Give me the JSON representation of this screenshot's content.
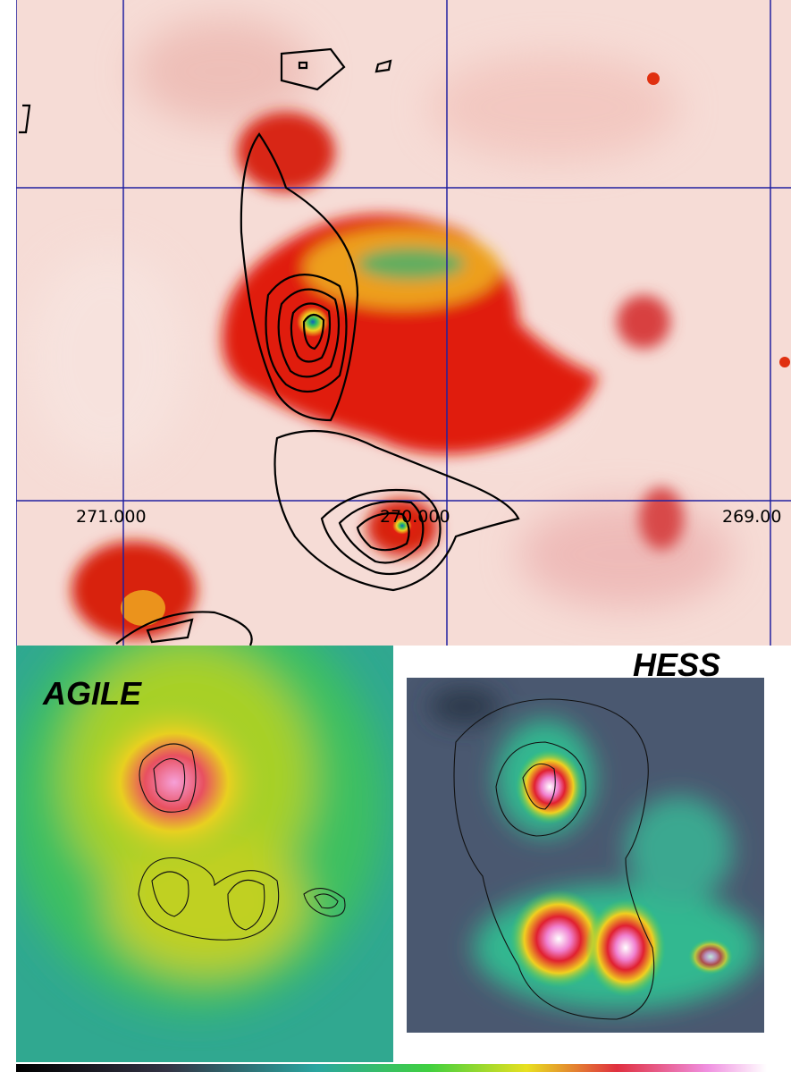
{
  "map": {
    "axis_labels": [
      "271.000",
      "270.000",
      "269.00"
    ]
  },
  "panels": [
    {
      "label": "AGILE"
    },
    {
      "label": "HESS"
    }
  ]
}
